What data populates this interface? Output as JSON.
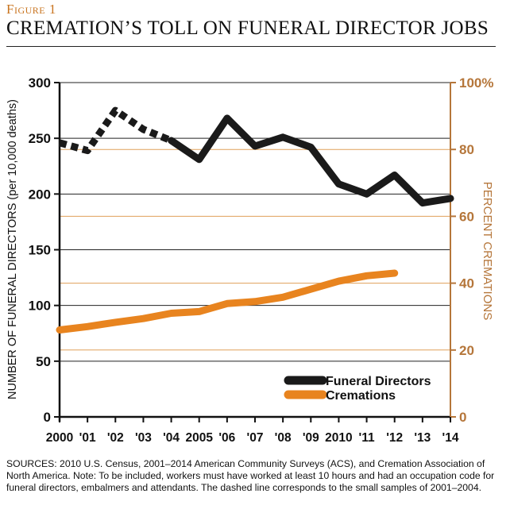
{
  "figure_label": "Figure 1",
  "title": "CREMATION’S TOLL ON FUNERAL DIRECTOR JOBS",
  "sources": "SOURCES: 2010 U.S. Census, 2001–2014 American Community Surveys (ACS), and Cremation Association of North America. Note: To be included, workers must have worked at least 10 hours and had an occupation code for funeral directors, embalmers and attendants. The dashed line corresponds to the small samples of 2001–2004.",
  "colors": {
    "funeral": "#1a1a1a",
    "cremation": "#e8841f",
    "right_axis": "#b5763a"
  },
  "chart_data": {
    "type": "line",
    "x": [
      2000,
      2001,
      2002,
      2003,
      2004,
      2005,
      2006,
      2007,
      2008,
      2009,
      2010,
      2011,
      2012,
      2013,
      2014
    ],
    "x_tick_labels": [
      "2000",
      "'01",
      "'02",
      "'03",
      "'04",
      "2005",
      "'06",
      "'07",
      "'08",
      "'09",
      "2010",
      "'11",
      "'12",
      "'13",
      "'14"
    ],
    "ylabel": "NUMBER OF FUNERAL DIRECTORS (per 10,000 deaths)",
    "ylim": [
      0,
      300
    ],
    "y_ticks": [
      0,
      50,
      100,
      150,
      200,
      250,
      300
    ],
    "y2label": "PERCENT CREMATIONS",
    "y2lim": [
      0,
      100
    ],
    "y2_ticks": [
      "0",
      "20",
      "40",
      "60",
      "80",
      "100%"
    ],
    "legend_position": "bottom-right",
    "series": [
      {
        "name": "Funeral Directors",
        "axis": "left",
        "x": [
          2000,
          2001,
          2002,
          2003,
          2004,
          2005,
          2006,
          2007,
          2008,
          2009,
          2010,
          2011,
          2012,
          2013,
          2014
        ],
        "values": [
          246,
          239,
          275,
          258,
          248,
          231,
          268,
          243,
          251,
          242,
          209,
          200,
          217,
          192,
          196
        ],
        "dashed_until": 2004
      },
      {
        "name": "Cremations",
        "axis": "right",
        "x": [
          2000,
          2001,
          2002,
          2003,
          2004,
          2005,
          2006,
          2007,
          2008,
          2009,
          2010,
          2011,
          2012
        ],
        "values": [
          26,
          27,
          28.3,
          29.4,
          31,
          31.5,
          33.9,
          34.5,
          35.8,
          38.2,
          40.6,
          42.2,
          43
        ]
      }
    ]
  }
}
